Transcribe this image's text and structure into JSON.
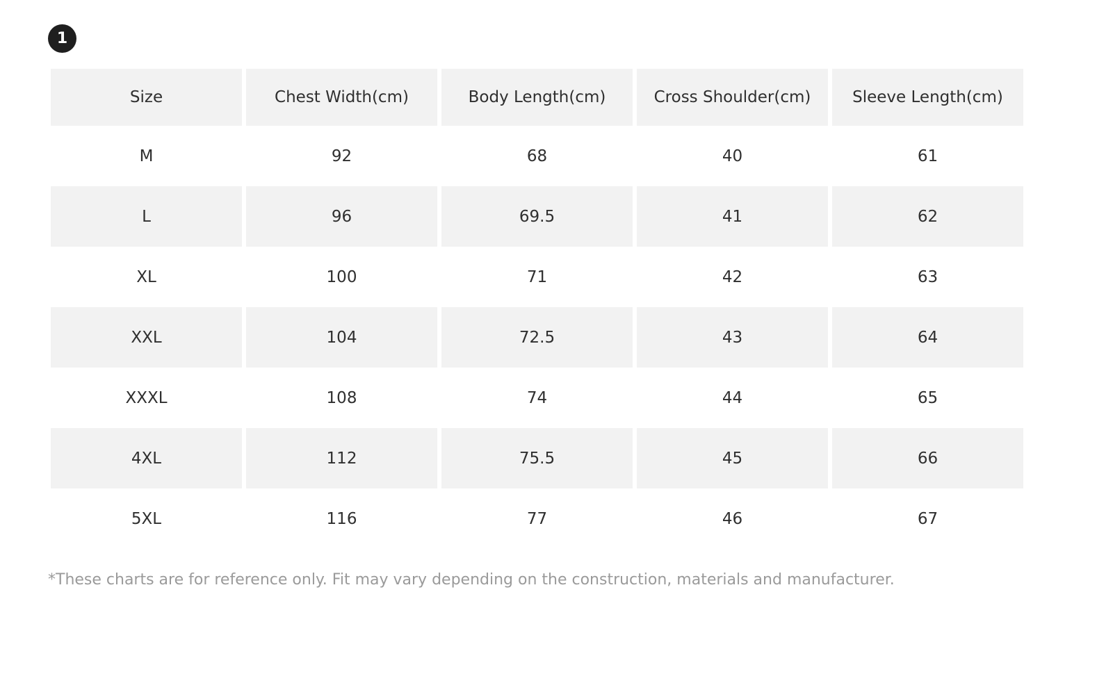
{
  "badge": {
    "number": "1"
  },
  "table": {
    "headers": [
      "Size",
      "Chest Width(cm)",
      "Body Length(cm)",
      "Cross Shoulder(cm)",
      "Sleeve Length(cm)"
    ],
    "rows": [
      [
        "M",
        "92",
        "68",
        "40",
        "61"
      ],
      [
        "L",
        "96",
        "69.5",
        "41",
        "62"
      ],
      [
        "XL",
        "100",
        "71",
        "42",
        "63"
      ],
      [
        "XXL",
        "104",
        "72.5",
        "43",
        "64"
      ],
      [
        "XXXL",
        "108",
        "74",
        "44",
        "65"
      ],
      [
        "4XL",
        "112",
        "75.5",
        "45",
        "66"
      ],
      [
        "5XL",
        "116",
        "77",
        "46",
        "67"
      ]
    ]
  },
  "note": "*These charts are for reference only. Fit may vary depending on the construction, materials and manufacturer.",
  "colors": {
    "header_background": "#f2f2f2",
    "shaded_row_background": "#f2f2f2",
    "badge_background": "#1f1f1f",
    "note_text": "#9a9a9a"
  }
}
